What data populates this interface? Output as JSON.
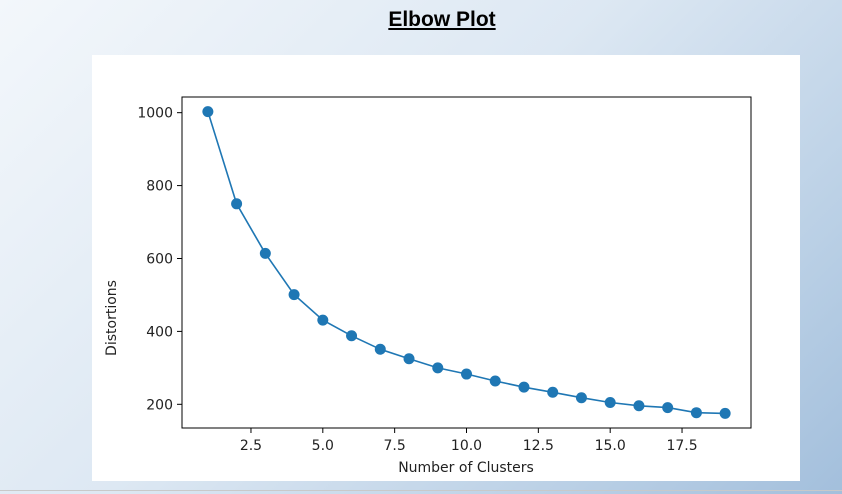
{
  "slide": {
    "title": "Elbow Plot"
  },
  "chart_data": {
    "type": "line",
    "title": "",
    "xlabel": "Number of Clusters",
    "ylabel": "Distortions",
    "x": [
      1,
      2,
      3,
      4,
      5,
      6,
      7,
      8,
      9,
      10,
      11,
      12,
      13,
      14,
      15,
      16,
      17,
      18,
      19
    ],
    "series": [
      {
        "values": [
          1003,
          750,
          614,
          501,
          431,
          388,
          351,
          325,
          300,
          283,
          264,
          247,
          233,
          218,
          205,
          196,
          191,
          177,
          175
        ],
        "color": "#1f77b4",
        "marker": "circle"
      }
    ],
    "xlim": [
      0.1,
      19.9
    ],
    "ylim": [
      135,
      1043
    ],
    "xticks": [
      2.5,
      5.0,
      7.5,
      10.0,
      12.5,
      15.0,
      17.5
    ],
    "xtick_labels": [
      "2.5",
      "5.0",
      "7.5",
      "10.0",
      "12.5",
      "15.0",
      "17.5"
    ],
    "yticks": [
      200,
      400,
      600,
      800,
      1000
    ],
    "ytick_labels": [
      "200",
      "400",
      "600",
      "800",
      "1000"
    ],
    "grid": false,
    "legend": "none"
  }
}
